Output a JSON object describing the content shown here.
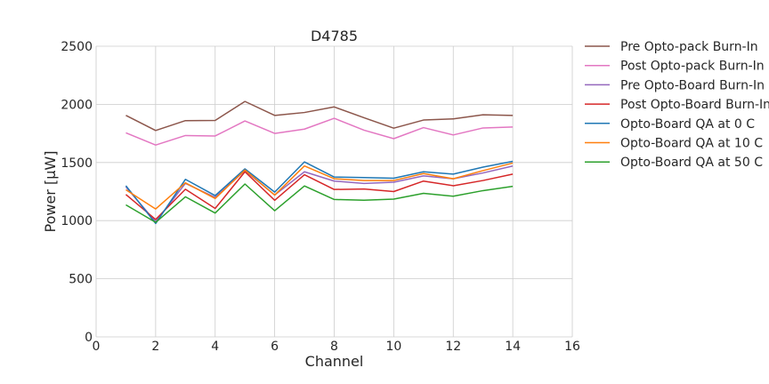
{
  "chart_data": {
    "type": "line",
    "title": "D4785",
    "xlabel": "Channel",
    "ylabel": "Power [μW]",
    "xlim": [
      0,
      16
    ],
    "ylim": [
      0,
      2500
    ],
    "xticks": [
      0,
      2,
      4,
      6,
      8,
      10,
      12,
      14,
      16
    ],
    "yticks": [
      0,
      500,
      1000,
      1500,
      2000,
      2500
    ],
    "grid": true,
    "legend_position": "outside right, top",
    "x": [
      1,
      2,
      3,
      4,
      5,
      6,
      7,
      8,
      9,
      10,
      11,
      12,
      13,
      14
    ],
    "series": [
      {
        "name": "Pre Opto-pack Burn-In",
        "color": "#8c564b",
        "values": [
          1905,
          1775,
          1860,
          1862,
          2025,
          1905,
          1930,
          1978,
          1885,
          1795,
          1865,
          1875,
          1910,
          1905
        ]
      },
      {
        "name": "Post Opto-pack Burn-In",
        "color": "#e377c2",
        "values": [
          1755,
          1650,
          1732,
          1728,
          1857,
          1750,
          1787,
          1880,
          1778,
          1705,
          1800,
          1737,
          1797,
          1805
        ]
      },
      {
        "name": "Pre Opto-Board Burn-In",
        "color": "#9467bd",
        "values": [
          1290,
          990,
          1320,
          1200,
          1430,
          1220,
          1420,
          1340,
          1320,
          1330,
          1385,
          1360,
          1410,
          1470
        ]
      },
      {
        "name": "Post Opto-Board Burn-In",
        "color": "#d62728",
        "values": [
          1225,
          1010,
          1270,
          1105,
          1420,
          1175,
          1395,
          1268,
          1272,
          1250,
          1340,
          1300,
          1345,
          1400
        ]
      },
      {
        "name": "Opto-Board QA at 0 C",
        "color": "#1f77b4",
        "values": [
          1300,
          975,
          1355,
          1215,
          1445,
          1245,
          1505,
          1375,
          1370,
          1365,
          1420,
          1400,
          1460,
          1510
        ]
      },
      {
        "name": "Opto-Board QA at 10 C",
        "color": "#ff7f0e",
        "values": [
          1265,
          1100,
          1325,
          1190,
          1435,
          1220,
          1470,
          1360,
          1345,
          1345,
          1405,
          1360,
          1430,
          1495
        ]
      },
      {
        "name": "Opto-Board QA at 50 C",
        "color": "#2ca02c",
        "values": [
          1135,
          985,
          1205,
          1065,
          1315,
          1085,
          1298,
          1182,
          1175,
          1185,
          1235,
          1210,
          1258,
          1295
        ]
      }
    ]
  }
}
